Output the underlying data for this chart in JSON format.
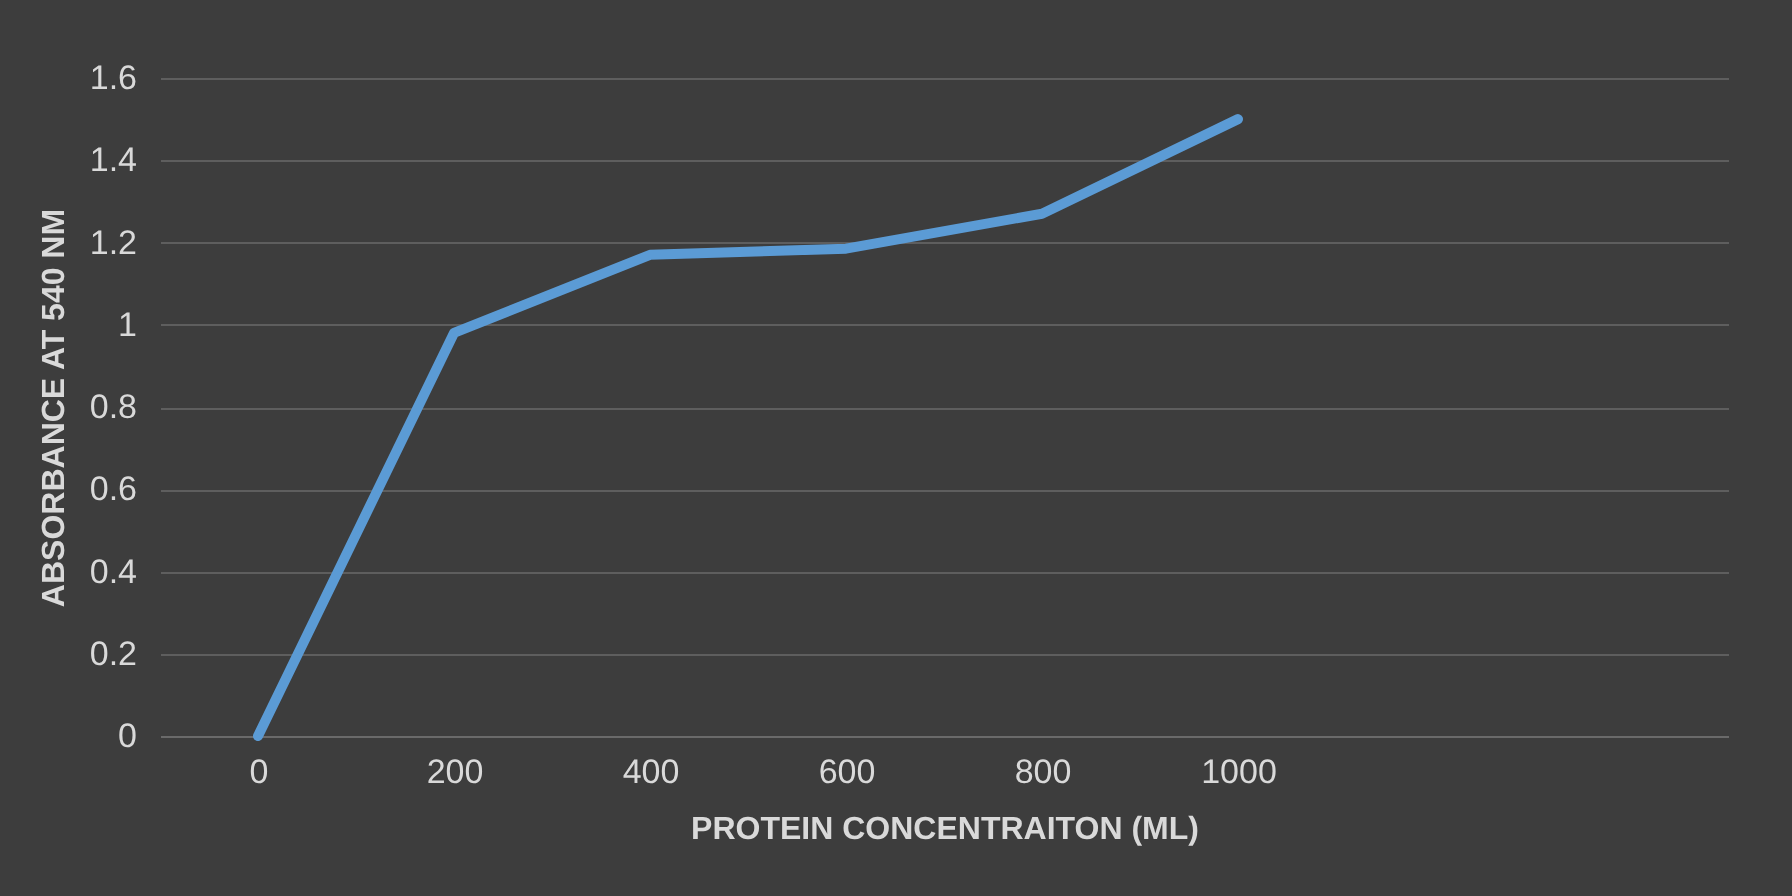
{
  "chart_data": {
    "type": "line",
    "xlabel": "PROTEIN CONCENTRAITON (ML)",
    "ylabel": "ABSORBANCE AT 540 NM",
    "categories": [
      "0",
      "200",
      "400",
      "600",
      "800",
      "1000",
      null,
      null
    ],
    "series": [
      {
        "color": "#5b9bd5",
        "values": [
          0,
          0.98,
          1.17,
          1.185,
          1.27,
          1.5,
          null,
          null
        ]
      }
    ],
    "ylim": [
      0,
      1.6
    ],
    "yticks": [
      0,
      0.2,
      0.4,
      0.6,
      0.8,
      1,
      1.2,
      1.4,
      1.6
    ],
    "grid": "y",
    "legend": false,
    "marker": "none",
    "line_style": "solid"
  }
}
